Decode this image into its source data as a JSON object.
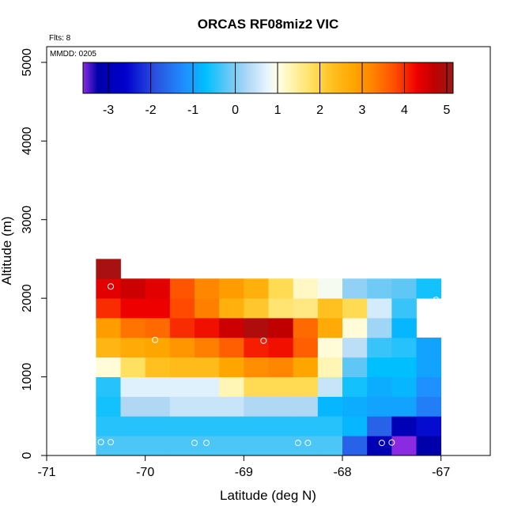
{
  "chart_data": {
    "type": "heatmap",
    "title": "ORCAS RF08miz2 VIC",
    "xlabel": "Latitude (deg N)",
    "ylabel": "Altitude (m)",
    "flights_text": "Flts: 8",
    "mmdd_text": "MMDD: 0205",
    "xlim": [
      -71,
      -66.5
    ],
    "ylim": [
      0,
      5200
    ],
    "x_ticks": [
      -71,
      -70,
      -69,
      -68,
      -67
    ],
    "x_tick_labels": [
      "-71",
      "-70",
      "-69",
      "-68",
      "-67"
    ],
    "y_ticks": [
      0,
      1000,
      2000,
      3000,
      4000,
      5000
    ],
    "y_tick_labels": [
      "0",
      "1000",
      "2000",
      "3000",
      "4000",
      "5000"
    ],
    "cell_width": 0.25,
    "cell_height": 250,
    "x_start": -70.5,
    "y_start": 0,
    "grid": [
      [
        -0.3,
        -0.3,
        -0.3,
        -0.3,
        -0.3,
        -0.3,
        -0.3,
        -0.3,
        -0.3,
        -0.3,
        -1.7,
        -3.0,
        -4.0,
        -3.2
      ],
      [
        -0.5,
        -0.5,
        -0.5,
        -0.5,
        -0.5,
        -0.5,
        -0.5,
        -0.5,
        -0.5,
        -0.5,
        -0.8,
        -1.7,
        -3.0,
        -2.5
      ],
      [
        -0.6,
        0.3,
        0.3,
        0.5,
        0.5,
        0.5,
        0.3,
        0.3,
        0.3,
        -0.8,
        -0.9,
        -1.0,
        -1.0,
        -1.4
      ],
      [
        -0.5,
        0.7,
        0.7,
        0.7,
        0.7,
        1.3,
        1.9,
        1.9,
        1.9,
        0.5,
        -0.6,
        -0.9,
        -0.8,
        -1.2
      ],
      [
        1.1,
        1.8,
        2.3,
        2.4,
        2.4,
        2.8,
        3.1,
        3.2,
        2.8,
        1.3,
        -0.2,
        -0.7,
        -0.7,
        -1.0
      ],
      [
        2.5,
        2.7,
        2.8,
        3.0,
        3.3,
        3.6,
        4.1,
        4.2,
        3.6,
        1.1,
        0.4,
        -0.4,
        -0.5,
        -1.0
      ],
      [
        2.9,
        3.4,
        3.5,
        4.0,
        4.2,
        4.6,
        4.9,
        4.7,
        3.5,
        2.7,
        1.1,
        0.2,
        -0.8,
        null
      ],
      [
        4.0,
        4.3,
        4.3,
        3.8,
        3.3,
        2.6,
        2.2,
        1.7,
        1.6,
        2.3,
        1.9,
        0.6,
        -0.4,
        null
      ],
      [
        4.4,
        4.6,
        4.4,
        3.7,
        3.2,
        2.9,
        2.6,
        1.9,
        1.2,
        0.9,
        0.1,
        -0.1,
        -0.2,
        -0.6
      ],
      [
        5.0,
        null,
        null,
        null,
        null,
        null,
        null,
        null,
        null,
        null,
        null,
        null,
        null,
        null
      ]
    ],
    "points": [
      {
        "lat": -70.45,
        "alt": 170
      },
      {
        "lat": -70.35,
        "alt": 170
      },
      {
        "lat": -69.5,
        "alt": 160
      },
      {
        "lat": -69.38,
        "alt": 160
      },
      {
        "lat": -68.45,
        "alt": 160
      },
      {
        "lat": -68.35,
        "alt": 160
      },
      {
        "lat": -67.6,
        "alt": 160
      },
      {
        "lat": -67.5,
        "alt": 165
      },
      {
        "lat": -69.9,
        "alt": 1470
      },
      {
        "lat": -68.8,
        "alt": 1460
      },
      {
        "lat": -70.35,
        "alt": 2150
      },
      {
        "lat": -67.05,
        "alt": 1980
      }
    ],
    "colorbar": {
      "range": [
        -3.6,
        5.15
      ],
      "ticks": [
        -3,
        -2,
        -1,
        0,
        1,
        2,
        3,
        4,
        5
      ],
      "tick_labels": [
        "-3",
        "-2",
        "-1",
        "0",
        "1",
        "2",
        "3",
        "4",
        "5"
      ],
      "stops": [
        {
          "v": -3.6,
          "c": "#8a2be2"
        },
        {
          "v": -3.25,
          "c": "#0000a8"
        },
        {
          "v": -2.6,
          "c": "#0000cd"
        },
        {
          "v": -1.9,
          "c": "#2a50e0"
        },
        {
          "v": -1.2,
          "c": "#1e90ff"
        },
        {
          "v": -0.7,
          "c": "#00bfff"
        },
        {
          "v": -0.2,
          "c": "#5fc7f5"
        },
        {
          "v": 0.3,
          "c": "#b0d8f5"
        },
        {
          "v": 0.75,
          "c": "#e6f4ff"
        },
        {
          "v": 1.0,
          "c": "#ffffe8"
        },
        {
          "v": 1.3,
          "c": "#fff5b4"
        },
        {
          "v": 1.8,
          "c": "#ffe060"
        },
        {
          "v": 2.3,
          "c": "#ffc020"
        },
        {
          "v": 2.8,
          "c": "#ffa500"
        },
        {
          "v": 3.3,
          "c": "#ff7f00"
        },
        {
          "v": 3.8,
          "c": "#ff4a00"
        },
        {
          "v": 4.3,
          "c": "#ee0000"
        },
        {
          "v": 4.7,
          "c": "#c00000"
        },
        {
          "v": 5.15,
          "c": "#9a1a1a"
        }
      ]
    }
  }
}
